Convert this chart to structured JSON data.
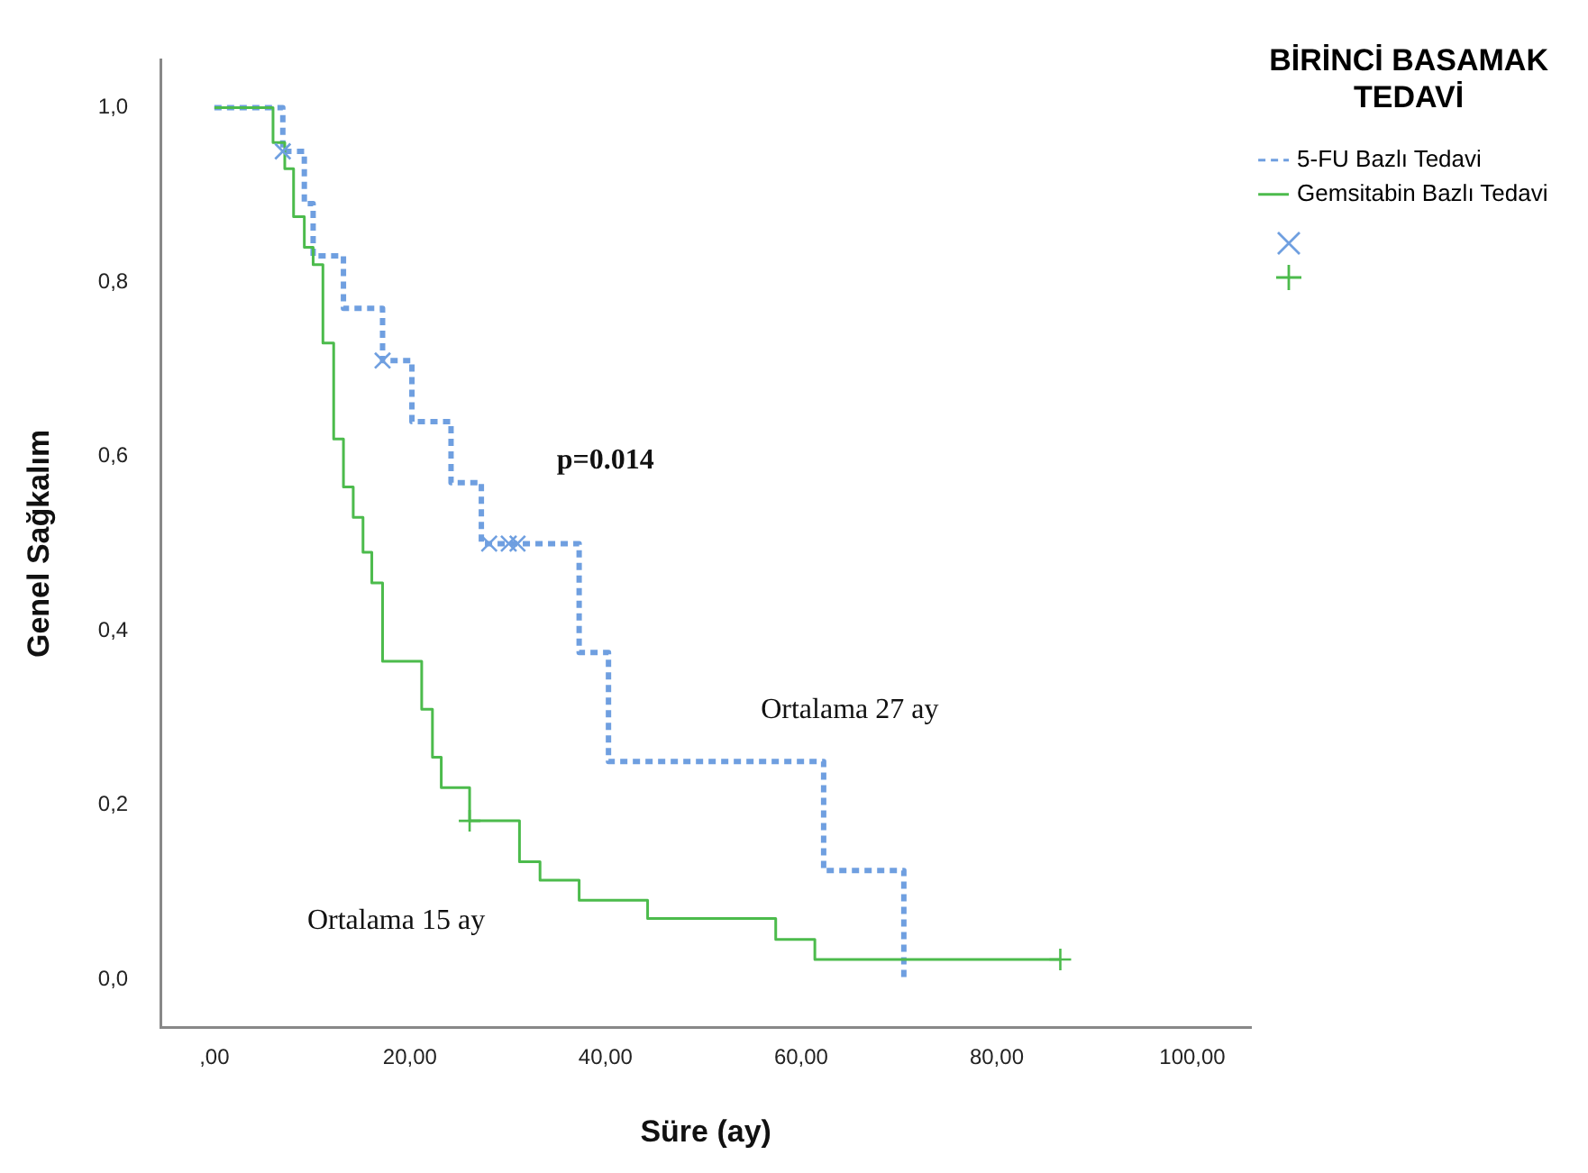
{
  "chart_data": {
    "type": "step",
    "xlabel": "Süre (ay)",
    "ylabel": "Genel Sağkalım",
    "legend_title": "BİRİNCİ BASAMAK TEDAVİ",
    "xlim": [
      -5.5,
      106
    ],
    "xticks": [
      {
        "value": 0,
        "label": ",00"
      },
      {
        "value": 20,
        "label": "20,00"
      },
      {
        "value": 40,
        "label": "40,00"
      },
      {
        "value": 60,
        "label": "60,00"
      },
      {
        "value": 80,
        "label": "80,00"
      },
      {
        "value": 100,
        "label": "100,00"
      }
    ],
    "ylim": [
      -0.055,
      1.055
    ],
    "yticks": [
      {
        "value": 0,
        "label": "0,0"
      },
      {
        "value": 0.2,
        "label": "0,2"
      },
      {
        "value": 0.4,
        "label": "0,4"
      },
      {
        "value": 0.6,
        "label": "0,6"
      },
      {
        "value": 0.8,
        "label": "0,8"
      },
      {
        "value": 1,
        "label": "1,0"
      }
    ],
    "grid": false,
    "legend": "top right",
    "series": [
      {
        "name": "5-FU Bazlı Tedavi",
        "color": "#6f9fe0",
        "line_style": "dashed",
        "marker": "none",
        "x": [
          0,
          7,
          9.2,
          10.1,
          13.2,
          17.2,
          20.2,
          24.2,
          27.3,
          37.3,
          40.3,
          62.3,
          70.5
        ],
        "values": [
          1,
          0.95,
          0.89,
          0.83,
          0.77,
          0.71,
          0.64,
          0.57,
          0.5,
          0.375,
          0.25,
          0.125,
          0
        ]
      },
      {
        "name": "Gemsitabin Bazlı Tedavi",
        "color": "#4cbb4c",
        "line_style": "solid",
        "marker": "none",
        "x": [
          0,
          6,
          7.2,
          8.1,
          9.2,
          10.1,
          11.1,
          12.2,
          13.2,
          14.2,
          15.2,
          16.1,
          17.2,
          21.2,
          22.3,
          23.2,
          26.1,
          31.2,
          33.3,
          37.3,
          44.3,
          57.4,
          61.4,
          86.5
        ],
        "values": [
          1,
          0.96,
          0.93,
          0.875,
          0.84,
          0.82,
          0.73,
          0.62,
          0.565,
          0.53,
          0.49,
          0.455,
          0.365,
          0.31,
          0.255,
          0.22,
          0.182,
          0.135,
          0.114,
          0.091,
          0.07,
          0.046,
          0.023,
          0.023
        ]
      },
      {
        "type": "scatter",
        "color": "#6f9fe0",
        "marker": "cross",
        "x": [
          7,
          17.2,
          28.1,
          30.1,
          31
        ],
        "values": [
          0.95,
          0.71,
          0.5,
          0.5,
          0.5
        ]
      },
      {
        "type": "scatter",
        "color": "#4cbb4c",
        "marker": "cross",
        "x": [
          26.1,
          86.5
        ],
        "values": [
          0.182,
          0.023
        ]
      }
    ],
    "annotations": [
      "p=0.014",
      "Ortalama 27 ay",
      "Ortalama 15 ay"
    ]
  }
}
